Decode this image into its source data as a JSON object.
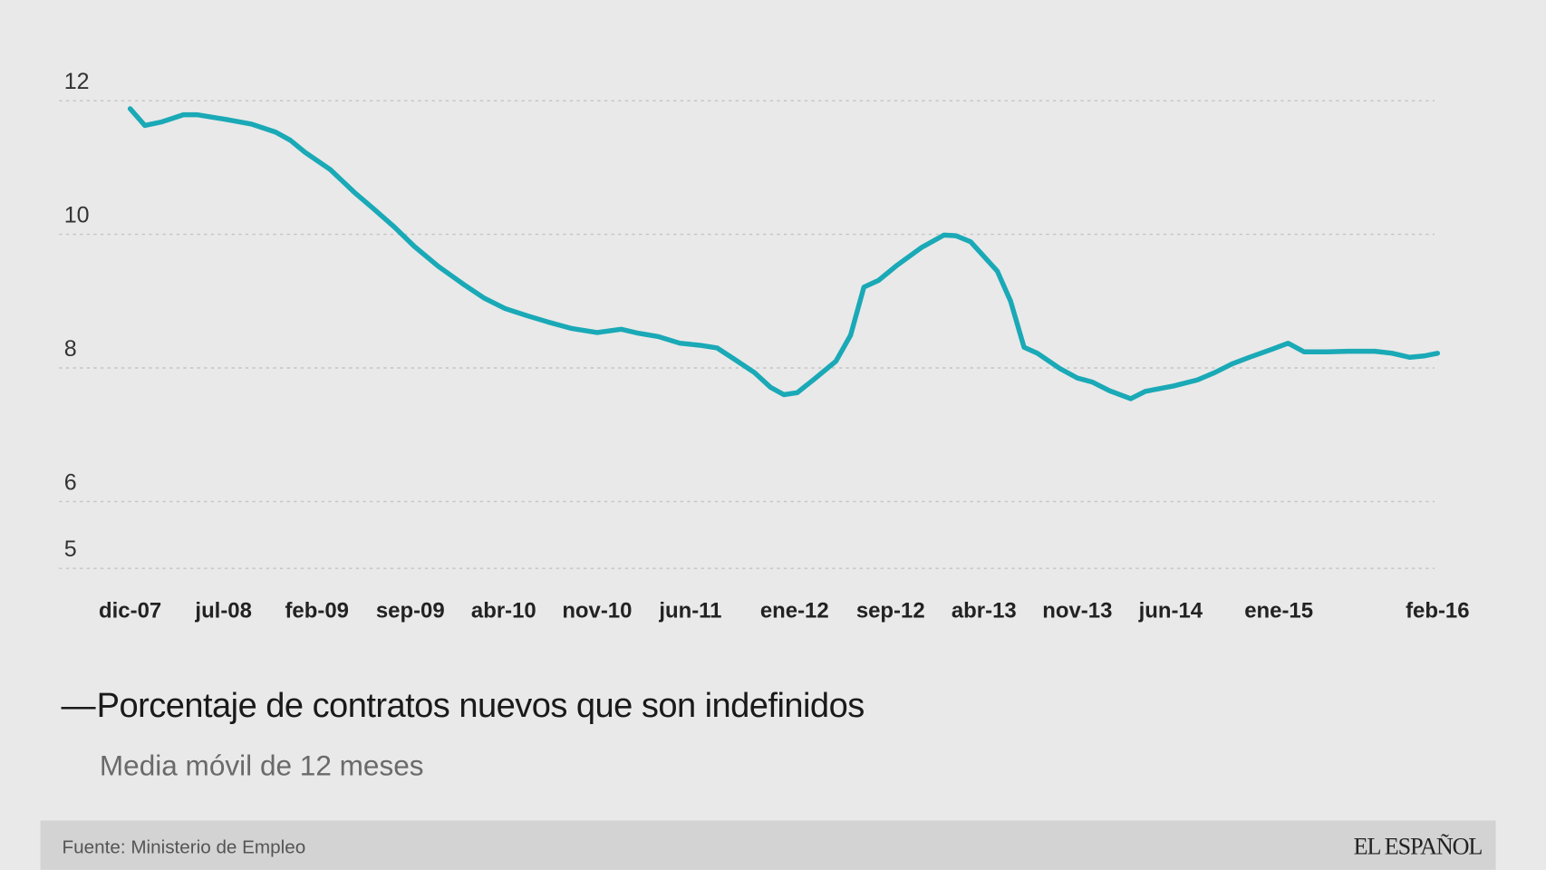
{
  "chart_data": {
    "type": "line",
    "title": "",
    "xlabel": "",
    "ylabel": "",
    "x_unit": "months since dic-07",
    "xlim": [
      0,
      98
    ],
    "ylim": [
      5,
      12
    ],
    "grid": true,
    "yticks": [
      12,
      10,
      8,
      6,
      5
    ],
    "xticks": [
      {
        "label": "dic-07",
        "x": 0
      },
      {
        "label": "jul-08",
        "x": 7
      },
      {
        "label": "feb-09",
        "x": 14
      },
      {
        "label": "sep-09",
        "x": 21
      },
      {
        "label": "abr-10",
        "x": 28
      },
      {
        "label": "nov-10",
        "x": 35
      },
      {
        "label": "jun-11",
        "x": 42
      },
      {
        "label": "ene-12",
        "x": 49.8
      },
      {
        "label": "sep-12",
        "x": 57
      },
      {
        "label": "abr-13",
        "x": 64
      },
      {
        "label": "nov-13",
        "x": 71
      },
      {
        "label": "jun-14",
        "x": 78
      },
      {
        "label": "ene-15",
        "x": 86.1
      },
      {
        "label": "feb-16",
        "x": 98
      }
    ],
    "series": [
      {
        "name": "Porcentaje de contratos nuevos que son indefinidos",
        "color": "#1aa9b6",
        "points": [
          [
            0,
            11.88
          ],
          [
            1.1,
            11.63
          ],
          [
            2.3,
            11.68
          ],
          [
            4,
            11.79
          ],
          [
            5,
            11.79
          ],
          [
            7.2,
            11.72
          ],
          [
            9.1,
            11.65
          ],
          [
            10.9,
            11.53
          ],
          [
            12,
            11.41
          ],
          [
            13.1,
            11.23
          ],
          [
            15,
            10.97
          ],
          [
            16.8,
            10.63
          ],
          [
            18.2,
            10.39
          ],
          [
            19.8,
            10.11
          ],
          [
            21.3,
            9.82
          ],
          [
            23.1,
            9.52
          ],
          [
            25,
            9.25
          ],
          [
            26.5,
            9.05
          ],
          [
            28.1,
            8.89
          ],
          [
            29.8,
            8.78
          ],
          [
            31.3,
            8.69
          ],
          [
            33.1,
            8.59
          ],
          [
            35,
            8.53
          ],
          [
            36.8,
            8.58
          ],
          [
            38.1,
            8.52
          ],
          [
            39.6,
            8.47
          ],
          [
            41.2,
            8.37
          ],
          [
            42.7,
            8.34
          ],
          [
            44,
            8.3
          ],
          [
            45.3,
            8.13
          ],
          [
            46.8,
            7.93
          ],
          [
            48,
            7.71
          ],
          [
            49,
            7.6
          ],
          [
            50,
            7.63
          ],
          [
            51.2,
            7.82
          ],
          [
            52.9,
            8.1
          ],
          [
            54,
            8.49
          ],
          [
            55,
            9.21
          ],
          [
            56.1,
            9.31
          ],
          [
            57.5,
            9.54
          ],
          [
            59.3,
            9.8
          ],
          [
            61,
            9.99
          ],
          [
            61.9,
            9.98
          ],
          [
            63,
            9.89
          ],
          [
            65,
            9.45
          ],
          [
            66,
            9.0
          ],
          [
            67,
            8.31
          ],
          [
            68,
            8.22
          ],
          [
            69.7,
            7.99
          ],
          [
            71,
            7.85
          ],
          [
            72.1,
            7.79
          ],
          [
            73.4,
            7.66
          ],
          [
            75,
            7.54
          ],
          [
            76.1,
            7.65
          ],
          [
            78.2,
            7.73
          ],
          [
            80,
            7.82
          ],
          [
            81.3,
            7.93
          ],
          [
            82.6,
            8.06
          ],
          [
            83.9,
            8.16
          ],
          [
            85.6,
            8.28
          ],
          [
            86.8,
            8.37
          ],
          [
            88,
            8.24
          ],
          [
            89.7,
            8.24
          ],
          [
            91.3,
            8.25
          ],
          [
            93.3,
            8.25
          ],
          [
            94.6,
            8.22
          ],
          [
            95.9,
            8.16
          ],
          [
            97,
            8.18
          ],
          [
            98,
            8.22
          ]
        ]
      }
    ],
    "legend": {
      "position": "bottom-left",
      "marker": "—",
      "label": "Porcentaje de contratos nuevos que son indefinidos",
      "sublabel": "Media móvil de 12 meses"
    }
  },
  "footer": {
    "source": "Fuente: Ministerio de Empleo",
    "logo": "EL ESPAÑOL"
  }
}
